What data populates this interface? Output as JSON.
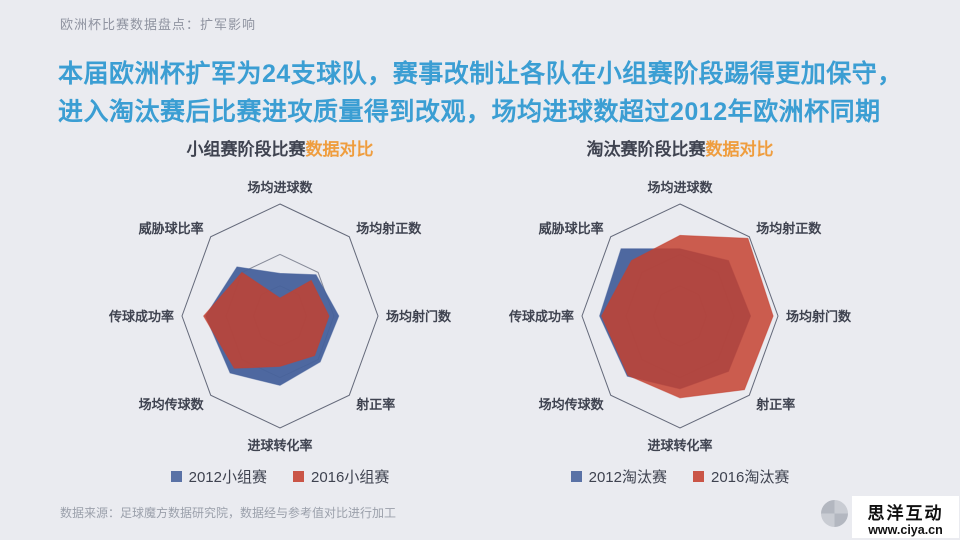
{
  "page": {
    "kicker": "欧洲杯比赛数据盘点：扩军影响",
    "headline": "本届欧洲杯扩军为24支球队，赛事改制让各队在小组赛阶段踢得更加保守，进入淘汰赛后比赛进攻质量得到改观，场均进球数超过2012年欧洲杯同期",
    "source_note": "数据来源：足球魔方数据研究院，数据经与参考值对比进行加工",
    "brand": {
      "name": "思洋互动",
      "url": "www.ciya.cn"
    }
  },
  "colors": {
    "background": "#eaebf0",
    "headline_blue": "#3b9ed3",
    "accent_orange": "#ef9d3e",
    "grid_line": "#5d6273",
    "series_blue": "#46619b",
    "series_red": "#c5402f",
    "label_dark": "#3f4350"
  },
  "chart_data": [
    {
      "type": "radar",
      "title_main": "小组赛阶段比赛",
      "title_accent": "数据对比",
      "axes": [
        "场均进球数",
        "场均射正数",
        "场均射门数",
        "射正率",
        "进球转化率",
        "场均传球数",
        "传球成功率",
        "威胁球比率"
      ],
      "scale_note": "relative 0-1, no numeric ticks shown",
      "grid_rings": [
        0.27,
        0.55,
        1.0
      ],
      "legend_position": "bottom",
      "series": [
        {
          "name": "2012小组赛",
          "color": "#46619b",
          "fill_opacity": 0.95,
          "values": [
            0.38,
            0.52,
            0.6,
            0.58,
            0.62,
            0.72,
            0.76,
            0.62
          ]
        },
        {
          "name": "2016小组赛",
          "color": "#c5402f",
          "fill_opacity": 0.84,
          "values": [
            0.16,
            0.45,
            0.5,
            0.5,
            0.45,
            0.66,
            0.78,
            0.55
          ]
        }
      ]
    },
    {
      "type": "radar",
      "title_main": "淘汰赛阶段比赛",
      "title_accent": "数据对比",
      "axes": [
        "场均进球数",
        "场均射正数",
        "场均射门数",
        "射正率",
        "进球转化率",
        "场均传球数",
        "传球成功率",
        "威胁球比率"
      ],
      "scale_note": "relative 0-1, no numeric ticks shown",
      "grid_rings": [
        0.27,
        0.55,
        1.0
      ],
      "legend_position": "bottom",
      "series": [
        {
          "name": "2012淘汰赛",
          "color": "#46619b",
          "fill_opacity": 0.95,
          "values": [
            0.6,
            0.7,
            0.72,
            0.7,
            0.65,
            0.76,
            0.82,
            0.85
          ]
        },
        {
          "name": "2016淘汰赛",
          "color": "#c5402f",
          "fill_opacity": 0.84,
          "values": [
            0.72,
            0.98,
            0.95,
            0.93,
            0.73,
            0.75,
            0.8,
            0.7
          ]
        }
      ]
    }
  ]
}
